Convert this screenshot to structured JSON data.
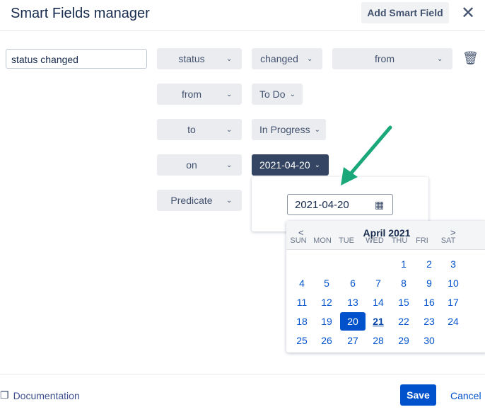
{
  "header": {
    "title": "Smart Fields manager",
    "add_label": "Add Smart Field"
  },
  "field": {
    "name": "status changed"
  },
  "rows": [
    [
      "status",
      "changed",
      "from"
    ],
    [
      "from",
      "To Do"
    ],
    [
      "to",
      "In Progress"
    ],
    [
      "on",
      "2021-04-20"
    ],
    [
      "Predicate"
    ]
  ],
  "date_input": "2021-04-20",
  "calendar": {
    "month": "April 2021",
    "prev": "<",
    "next": ">",
    "weekdays": [
      "SUN",
      "MON",
      "TUE",
      "WED",
      "THU",
      "FRI",
      "SAT"
    ],
    "weeks": [
      [
        "",
        "",
        "",
        "",
        "1",
        "2",
        "3"
      ],
      [
        "4",
        "5",
        "6",
        "7",
        "8",
        "9",
        "10"
      ],
      [
        "11",
        "12",
        "13",
        "14",
        "15",
        "16",
        "17"
      ],
      [
        "18",
        "19",
        "20",
        "21",
        "22",
        "23",
        "24"
      ],
      [
        "25",
        "26",
        "27",
        "28",
        "29",
        "30",
        ""
      ]
    ],
    "selected": "20",
    "today": "21"
  },
  "footer": {
    "documentation": "Documentation",
    "save": "Save",
    "cancel": "Cancel"
  },
  "colors": {
    "primary": "#0052cc",
    "dark_select": "#344563",
    "arrow": "#1aa87a"
  }
}
